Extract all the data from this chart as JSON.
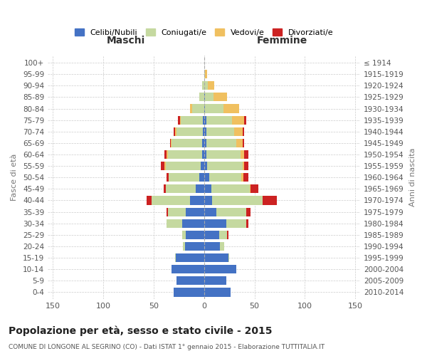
{
  "age_groups": [
    "0-4",
    "5-9",
    "10-14",
    "15-19",
    "20-24",
    "25-29",
    "30-34",
    "35-39",
    "40-44",
    "45-49",
    "50-54",
    "55-59",
    "60-64",
    "65-69",
    "70-74",
    "75-79",
    "80-84",
    "85-89",
    "90-94",
    "95-99",
    "100+"
  ],
  "birth_years": [
    "2010-2014",
    "2005-2009",
    "2000-2004",
    "1995-1999",
    "1990-1994",
    "1985-1989",
    "1980-1984",
    "1975-1979",
    "1970-1974",
    "1965-1969",
    "1960-1964",
    "1955-1959",
    "1950-1954",
    "1945-1949",
    "1940-1944",
    "1935-1939",
    "1930-1934",
    "1925-1929",
    "1920-1924",
    "1915-1919",
    "≤ 1914"
  ],
  "colors": {
    "celibi": "#4472C4",
    "coniugati": "#c5d9a0",
    "vedovi": "#f0c060",
    "divorziati": "#cc2222"
  },
  "maschi": {
    "celibi": [
      30,
      27,
      32,
      28,
      19,
      18,
      22,
      18,
      14,
      8,
      5,
      3,
      2,
      2,
      1,
      1,
      0,
      0,
      0,
      0,
      0
    ],
    "coniugati": [
      0,
      0,
      0,
      1,
      2,
      4,
      15,
      18,
      38,
      30,
      30,
      35,
      34,
      30,
      26,
      22,
      12,
      5,
      2,
      0,
      0
    ],
    "vedovi": [
      0,
      0,
      0,
      0,
      0,
      0,
      0,
      0,
      0,
      0,
      0,
      1,
      1,
      1,
      2,
      1,
      2,
      0,
      0,
      0,
      0
    ],
    "divorziati": [
      0,
      0,
      0,
      0,
      0,
      0,
      0,
      1,
      5,
      2,
      2,
      4,
      2,
      1,
      1,
      2,
      0,
      0,
      0,
      0,
      0
    ]
  },
  "femmine": {
    "nubili": [
      26,
      22,
      32,
      24,
      16,
      15,
      22,
      12,
      8,
      7,
      5,
      3,
      2,
      2,
      2,
      2,
      1,
      1,
      0,
      0,
      0
    ],
    "coniugate": [
      0,
      0,
      0,
      1,
      4,
      8,
      20,
      30,
      50,
      38,
      32,
      35,
      34,
      30,
      28,
      26,
      18,
      8,
      4,
      1,
      0
    ],
    "vedove": [
      0,
      0,
      0,
      0,
      0,
      0,
      0,
      0,
      0,
      1,
      2,
      2,
      4,
      6,
      8,
      12,
      16,
      14,
      6,
      2,
      0
    ],
    "divorziate": [
      0,
      0,
      0,
      0,
      0,
      1,
      2,
      4,
      14,
      8,
      5,
      4,
      4,
      2,
      2,
      2,
      0,
      0,
      0,
      0,
      0
    ]
  },
  "title": "Popolazione per età, sesso e stato civile - 2015",
  "subtitle": "COMUNE DI LONGONE AL SEGRINO (CO) - Dati ISTAT 1° gennaio 2015 - Elaborazione TUTTITALIA.IT",
  "xlabel_maschi": "Maschi",
  "xlabel_femmine": "Femmine",
  "ylabel": "Fasce di età",
  "ylabel_right": "Anni di nascita",
  "xlim": 155,
  "legend_labels": [
    "Celibi/Nubili",
    "Coniugati/e",
    "Vedovi/e",
    "Divorziati/e"
  ]
}
